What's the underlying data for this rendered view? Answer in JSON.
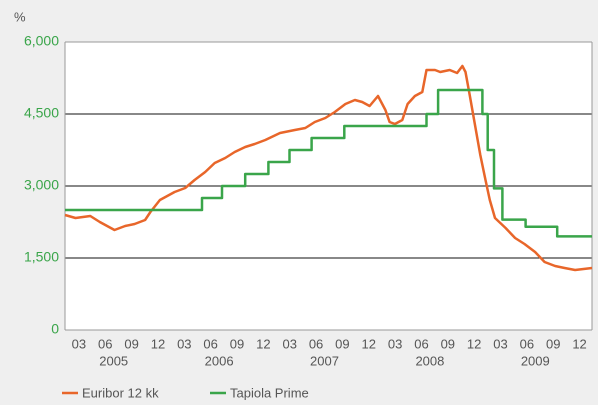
{
  "chart_data": {
    "type": "line",
    "y_unit_label": "%",
    "ylim": [
      0,
      6000
    ],
    "yticks": [
      0,
      {
        "value": 1500,
        "label": "1,500"
      },
      {
        "value": 3000,
        "label": "3,000"
      },
      {
        "value": 4500,
        "label": "4,500"
      },
      {
        "value": 6000,
        "label": "6,000"
      }
    ],
    "xlim": [
      2005,
      2010
    ],
    "xticks": [
      {
        "value": 2005.17,
        "label": "03"
      },
      {
        "value": 2005.42,
        "label": "06"
      },
      {
        "value": 2005.67,
        "label": "09"
      },
      {
        "value": 2005.92,
        "label": "12"
      },
      {
        "value": 2006.17,
        "label": "03"
      },
      {
        "value": 2006.42,
        "label": "06"
      },
      {
        "value": 2006.67,
        "label": "09"
      },
      {
        "value": 2006.92,
        "label": "12"
      },
      {
        "value": 2007.17,
        "label": "03"
      },
      {
        "value": 2007.42,
        "label": "06"
      },
      {
        "value": 2007.67,
        "label": "09"
      },
      {
        "value": 2007.92,
        "label": "12"
      },
      {
        "value": 2008.17,
        "label": "03"
      },
      {
        "value": 2008.42,
        "label": "06"
      },
      {
        "value": 2008.67,
        "label": "09"
      },
      {
        "value": 2008.92,
        "label": "12"
      },
      {
        "value": 2009.17,
        "label": "03"
      },
      {
        "value": 2009.42,
        "label": "06"
      },
      {
        "value": 2009.67,
        "label": "09"
      },
      {
        "value": 2009.92,
        "label": "12"
      }
    ],
    "year_labels": [
      {
        "value": 2005.5,
        "label": "2005"
      },
      {
        "value": 2006.5,
        "label": "2006"
      },
      {
        "value": 2007.5,
        "label": "2007"
      },
      {
        "value": 2008.5,
        "label": "2008"
      },
      {
        "value": 2009.5,
        "label": "2009"
      }
    ],
    "grid": true,
    "legend": "bottom",
    "series": [
      {
        "name": "Euribor 12 kk",
        "color": "#e8662a",
        "x": [
          2005.0,
          2005.1,
          2005.24,
          2005.33,
          2005.47,
          2005.57,
          2005.66,
          2005.76,
          2005.81,
          2005.9,
          2006.04,
          2006.14,
          2006.23,
          2006.33,
          2006.42,
          2006.52,
          2006.61,
          2006.71,
          2006.8,
          2006.9,
          2007.04,
          2007.18,
          2007.28,
          2007.37,
          2007.47,
          2007.56,
          2007.66,
          2007.75,
          2007.82,
          2007.89,
          2007.97,
          2008.04,
          2008.08,
          2008.13,
          2008.2,
          2008.25,
          2008.32,
          2008.39,
          2008.43,
          2008.51,
          2008.56,
          2008.65,
          2008.72,
          2008.77,
          2008.8,
          2008.84,
          2008.89,
          2008.94,
          2008.99,
          2009.03,
          2009.08,
          2009.18,
          2009.27,
          2009.36,
          2009.46,
          2009.55,
          2009.65,
          2009.74,
          2009.84,
          2010.0
        ],
        "values": [
          2396,
          2333,
          2375,
          2250,
          2083,
          2167,
          2208,
          2292,
          2458,
          2708,
          2875,
          2958,
          3125,
          3292,
          3479,
          3583,
          3708,
          3813,
          3875,
          3958,
          4104,
          4167,
          4208,
          4333,
          4417,
          4542,
          4708,
          4792,
          4750,
          4667,
          4875,
          4583,
          4333,
          4292,
          4375,
          4708,
          4875,
          4958,
          5417,
          5417,
          5375,
          5417,
          5354,
          5500,
          5375,
          4896,
          4271,
          3646,
          3125,
          2708,
          2333,
          2125,
          1917,
          1792,
          1625,
          1417,
          1333,
          1292,
          1250,
          1292
        ]
      },
      {
        "name": "Tapiola Prime",
        "color": "#3aa54a",
        "x": [
          2005.0,
          2006.3,
          2006.3,
          2006.49,
          2006.49,
          2006.71,
          2006.71,
          2006.93,
          2006.93,
          2007.13,
          2007.13,
          2007.34,
          2007.34,
          2007.65,
          2007.65,
          2008.43,
          2008.43,
          2008.54,
          2008.54,
          2008.96,
          2008.96,
          2009.01,
          2009.01,
          2009.07,
          2009.07,
          2009.15,
          2009.15,
          2009.37,
          2009.37,
          2009.67,
          2009.67,
          2010.0
        ],
        "values": [
          2500,
          2500,
          2750,
          2750,
          3000,
          3000,
          3250,
          3250,
          3500,
          3500,
          3750,
          3750,
          4000,
          4000,
          4250,
          4250,
          4500,
          4500,
          5000,
          5000,
          4500,
          4500,
          3750,
          3750,
          2950,
          2950,
          2300,
          2300,
          2150,
          2150,
          1950,
          1950
        ]
      }
    ]
  }
}
